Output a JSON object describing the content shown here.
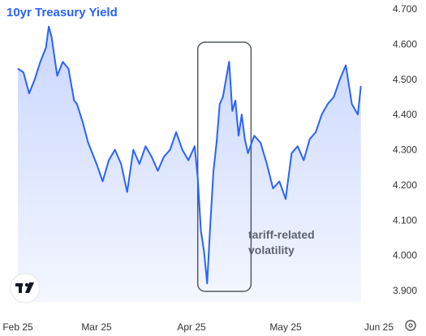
{
  "chart_data": {
    "type": "area",
    "title": "10yr Treasury Yield",
    "xlabel": "",
    "ylabel": "",
    "ylim": [
      3.86,
      4.74
    ],
    "y_ticks": [
      "4.700",
      "4.600",
      "4.500",
      "4.400",
      "4.300",
      "4.200",
      "4.100",
      "4.000",
      "3.900"
    ],
    "x_ticks": [
      {
        "label": "Feb 25",
        "x": "2025-02-01"
      },
      {
        "label": "Mar 25",
        "x": "2025-03-01"
      },
      {
        "label": "Apr 25",
        "x": "2025-04-01"
      },
      {
        "label": "May 25",
        "x": "2025-05-01"
      },
      {
        "label": "Jun 25",
        "x": "2025-06-01"
      }
    ],
    "annotation": {
      "lines": [
        "tariff-related",
        "volatility"
      ],
      "x_range": [
        "2025-04-03",
        "2025-04-20"
      ]
    },
    "colors": {
      "line": "#2962ff",
      "fill_top": "#c9d6ff",
      "fill_bottom": "#f4f7ff",
      "box": "#555a66"
    },
    "series": [
      {
        "x": [
          "2025-02-01",
          "2025-02-03",
          "2025-02-05",
          "2025-02-07",
          "2025-02-09",
          "2025-02-11",
          "2025-02-12",
          "2025-02-13",
          "2025-02-15",
          "2025-02-17",
          "2025-02-19",
          "2025-02-21",
          "2025-02-22",
          "2025-02-24",
          "2025-02-26",
          "2025-02-28",
          "2025-03-01",
          "2025-03-03",
          "2025-03-05",
          "2025-03-07",
          "2025-03-09",
          "2025-03-11",
          "2025-03-13",
          "2025-03-15",
          "2025-03-17",
          "2025-03-19",
          "2025-03-21",
          "2025-03-23",
          "2025-03-25",
          "2025-03-27",
          "2025-03-29",
          "2025-03-31",
          "2025-04-02",
          "2025-04-03",
          "2025-04-04",
          "2025-04-05",
          "2025-04-06",
          "2025-04-07",
          "2025-04-08",
          "2025-04-09",
          "2025-04-10",
          "2025-04-11",
          "2025-04-12",
          "2025-04-13",
          "2025-04-14",
          "2025-04-15",
          "2025-04-16",
          "2025-04-17",
          "2025-04-18",
          "2025-04-19",
          "2025-04-21",
          "2025-04-23",
          "2025-04-25",
          "2025-04-27",
          "2025-04-29",
          "2025-05-01",
          "2025-05-03",
          "2025-05-05",
          "2025-05-07",
          "2025-05-09",
          "2025-05-11",
          "2025-05-13",
          "2025-05-15",
          "2025-05-17",
          "2025-05-19",
          "2025-05-21",
          "2025-05-23",
          "2025-05-25",
          "2025-05-26"
        ],
        "values": [
          4.53,
          4.52,
          4.46,
          4.5,
          4.55,
          4.59,
          4.65,
          4.62,
          4.51,
          4.55,
          4.53,
          4.44,
          4.43,
          4.38,
          4.32,
          4.28,
          4.26,
          4.21,
          4.27,
          4.3,
          4.26,
          4.18,
          4.3,
          4.26,
          4.31,
          4.28,
          4.24,
          4.28,
          4.3,
          4.35,
          4.3,
          4.27,
          4.31,
          4.22,
          4.07,
          4.01,
          3.92,
          4.09,
          4.24,
          4.32,
          4.43,
          4.45,
          4.5,
          4.55,
          4.41,
          4.44,
          4.34,
          4.4,
          4.33,
          4.29,
          4.34,
          4.32,
          4.26,
          4.19,
          4.21,
          4.16,
          4.29,
          4.31,
          4.27,
          4.33,
          4.35,
          4.4,
          4.43,
          4.45,
          4.5,
          4.54,
          4.43,
          4.4,
          4.48
        ]
      }
    ]
  }
}
